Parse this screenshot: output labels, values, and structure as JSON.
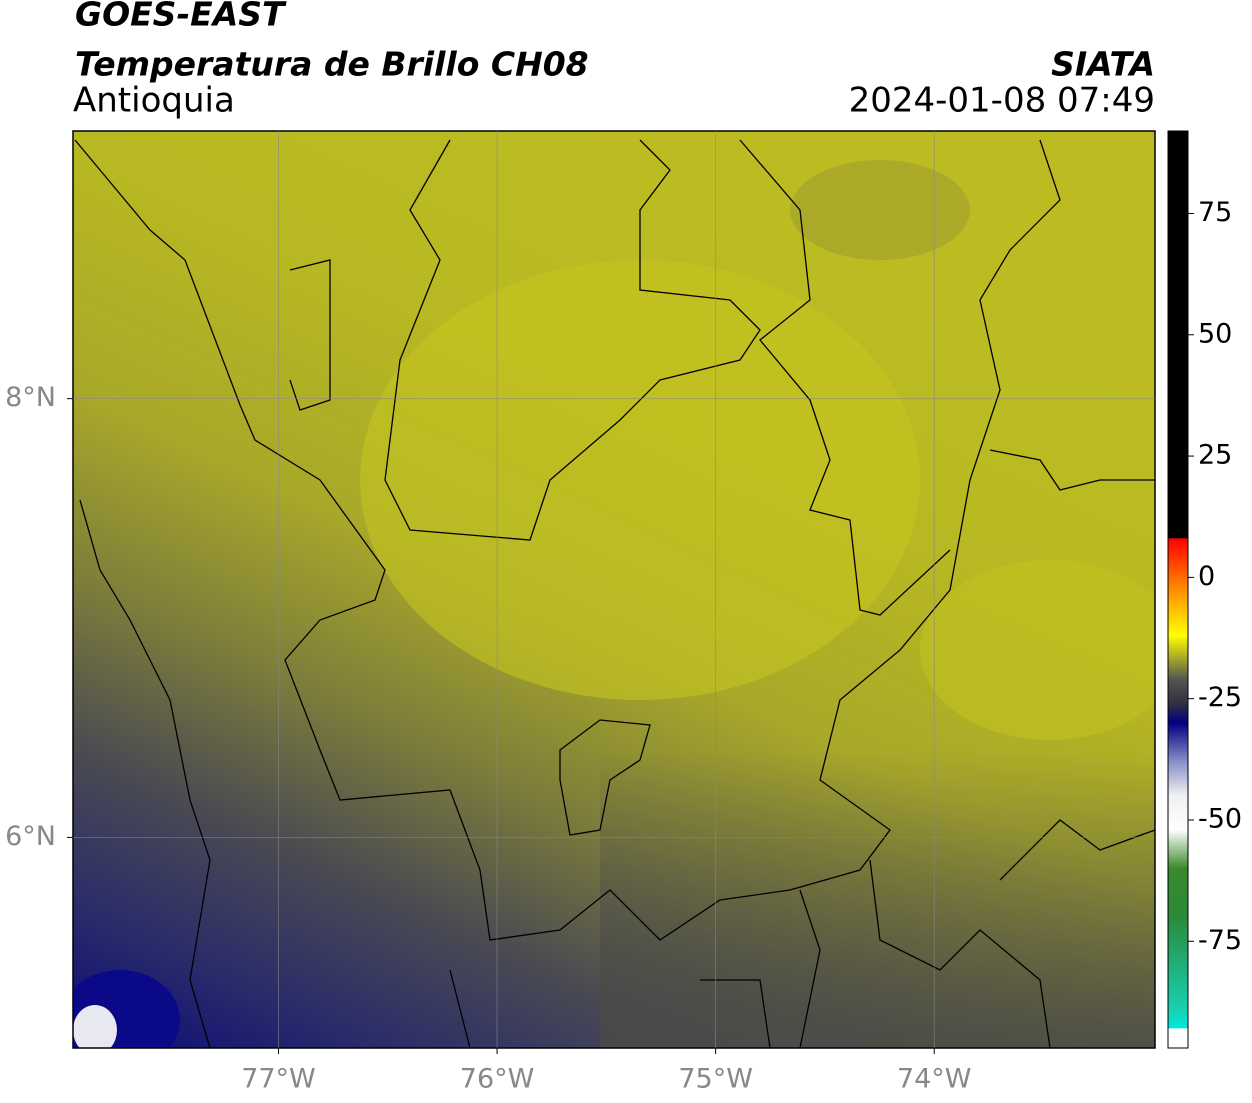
{
  "chart_data": {
    "type": "map",
    "title": "GOES-EAST",
    "subtitle": "Temperatura de Brillo CH08",
    "region": "Antioquia",
    "source": "SIATA",
    "timestamp": "2024-01-08 07:49",
    "xlim": [
      -77.94,
      -72.99
    ],
    "ylim": [
      5.04,
      9.22
    ],
    "xticks": [
      {
        "value": -77,
        "label": "77°W"
      },
      {
        "value": -76,
        "label": "76°W"
      },
      {
        "value": -75,
        "label": "75°W"
      },
      {
        "value": -74,
        "label": "74°W"
      }
    ],
    "yticks": [
      {
        "value": 6,
        "label": "6°N"
      },
      {
        "value": 8,
        "label": "8°N"
      }
    ],
    "grid": true,
    "colorbar": {
      "lim": [
        -97,
        92
      ],
      "ticks": [
        -75,
        -50,
        -25,
        0,
        25,
        50,
        75
      ],
      "stops": [
        {
          "value": -97,
          "color": "#ffffff"
        },
        {
          "value": -93,
          "color": "#ffffff"
        },
        {
          "value": -92.9,
          "color": "#00e8e0"
        },
        {
          "value": -89,
          "color": "#18d0b0"
        },
        {
          "value": -70,
          "color": "#2a8a3a"
        },
        {
          "value": -60,
          "color": "#3a8a2a"
        },
        {
          "value": -52,
          "color": "#ffffff"
        },
        {
          "value": -45,
          "color": "#f0f0f0"
        },
        {
          "value": -38,
          "color": "#8890c8"
        },
        {
          "value": -30,
          "color": "#000080"
        },
        {
          "value": -26,
          "color": "#303040"
        },
        {
          "value": -21,
          "color": "#555550"
        },
        {
          "value": -12,
          "color": "#ffff00"
        },
        {
          "value": -4,
          "color": "#ffa000"
        },
        {
          "value": 8,
          "color": "#ff0000"
        },
        {
          "value": 8.1,
          "color": "#000000"
        },
        {
          "value": 92,
          "color": "#000000"
        }
      ]
    }
  }
}
